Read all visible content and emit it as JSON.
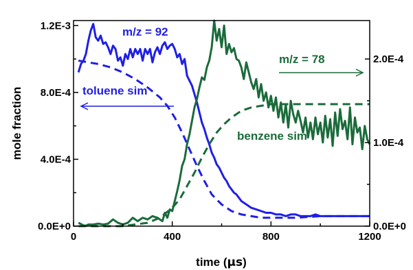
{
  "chart_data": {
    "type": "line",
    "xlabel_prefix": "time (",
    "xlabel_unit": "μs",
    "xlabel_suffix": ")",
    "ylabel": "mole fraction",
    "xlim": [
      0,
      1200
    ],
    "ylim_left": [
      0,
      0.00123
    ],
    "ylim_right": [
      0,
      0.000246
    ],
    "x_ticks": [
      0,
      400,
      800,
      1200
    ],
    "x_tick_labels": [
      "0",
      "400",
      "800",
      "1200"
    ],
    "left_ticks": [
      0,
      0.0004,
      0.0008,
      0.0012
    ],
    "left_tick_labels": [
      "0.0E+0",
      "4.0E-4",
      "8.0E-4",
      "1.2E-3"
    ],
    "right_ticks": [
      0,
      0.0001,
      0.0002
    ],
    "right_tick_labels": [
      "0.0E+0",
      "1.0E-4",
      "2.0E-4"
    ],
    "grid": false,
    "annotations": {
      "toluene_mz": "m/z = 92",
      "benzene_mz": "m/z = 78",
      "toluene_sim": "toluene sim",
      "benzene_sim": "benzene sim"
    },
    "colors": {
      "toluene": "#1f1fe6",
      "benzene": "#1b6b3a"
    },
    "series": [
      {
        "label_ref": "toluene_mz",
        "axis": "left",
        "style": "solid",
        "color": "#1f1fe6",
        "x": [
          20,
          30,
          40,
          50,
          60,
          70,
          80,
          90,
          100,
          110,
          120,
          130,
          140,
          150,
          160,
          170,
          180,
          190,
          200,
          210,
          220,
          230,
          240,
          250,
          260,
          270,
          280,
          290,
          300,
          310,
          320,
          330,
          340,
          350,
          360,
          370,
          380,
          390,
          400,
          410,
          420,
          430,
          440,
          450,
          460,
          470,
          480,
          490,
          500,
          510,
          520,
          530,
          540,
          550,
          560,
          570,
          580,
          590,
          600,
          610,
          620,
          630,
          640,
          650,
          660,
          670,
          680,
          690,
          700,
          720,
          740,
          760,
          780,
          800,
          820,
          840,
          860,
          880,
          900,
          920,
          940,
          960,
          980,
          1000,
          1020,
          1040,
          1060,
          1080,
          1100,
          1120,
          1140,
          1160,
          1180,
          1200
        ],
        "y": [
          0.00092,
          0.00097,
          0.00099,
          0.00103,
          0.00111,
          0.00117,
          0.00121,
          0.00113,
          0.00111,
          0.00114,
          0.00109,
          0.0011,
          0.00107,
          0.00103,
          0.00108,
          0.00106,
          0.00099,
          0.00101,
          0.00096,
          0.00103,
          0.001,
          0.00106,
          0.00101,
          0.00106,
          0.00103,
          0.00106,
          0.00099,
          0.00106,
          0.00103,
          0.00106,
          0.00098,
          0.00104,
          0.00107,
          0.00103,
          0.00108,
          0.0011,
          0.00106,
          0.00108,
          0.00109,
          0.00106,
          0.00101,
          0.00103,
          0.00097,
          0.001,
          0.0009,
          0.00087,
          0.00084,
          0.00079,
          0.00074,
          0.00068,
          0.00062,
          0.00058,
          0.00053,
          0.00049,
          0.00044,
          0.00041,
          0.00037,
          0.00035,
          0.00032,
          0.00029,
          0.00027,
          0.00024,
          0.00022,
          0.0002,
          0.00019,
          0.00017,
          0.00015,
          0.00014,
          0.00013,
          0.00011,
          0.0001,
          9e-05,
          8e-05,
          8e-05,
          7e-05,
          7e-05,
          6e-05,
          7e-05,
          7e-05,
          6e-05,
          6e-05,
          6e-05,
          7e-05,
          6e-05,
          6e-05,
          6e-05,
          6e-05,
          6e-05,
          6e-05,
          6e-05,
          6e-05,
          6e-05,
          6e-05,
          6e-05
        ]
      },
      {
        "label_ref": "toluene_sim",
        "axis": "left",
        "style": "dashed",
        "color": "#1f1fe6",
        "x": [
          20,
          60,
          100,
          150,
          200,
          250,
          300,
          350,
          380,
          410,
          440,
          470,
          500,
          530,
          560,
          600,
          640,
          680,
          720,
          760,
          800,
          850,
          900,
          1000,
          1100,
          1200
        ],
        "y": [
          0.00099,
          0.00098,
          0.00097,
          0.00095,
          0.00092,
          0.00088,
          0.00083,
          0.00077,
          0.00072,
          0.00065,
          0.00056,
          0.00046,
          0.00036,
          0.00027,
          0.00019,
          0.00013,
          9e-05,
          7e-05,
          6e-05,
          5e-05,
          5e-05,
          5e-05,
          5e-05,
          6e-05,
          6e-05,
          6e-05
        ]
      },
      {
        "label_ref": "benzene_mz",
        "axis": "right",
        "style": "solid",
        "color": "#1b6b3a",
        "x": [
          20,
          40,
          50,
          60,
          80,
          100,
          120,
          140,
          160,
          180,
          200,
          220,
          240,
          260,
          280,
          300,
          320,
          340,
          360,
          370,
          380,
          390,
          400,
          410,
          420,
          430,
          440,
          450,
          460,
          470,
          480,
          490,
          500,
          510,
          520,
          530,
          540,
          550,
          560,
          570,
          580,
          590,
          600,
          610,
          620,
          630,
          640,
          650,
          660,
          670,
          680,
          690,
          700,
          710,
          720,
          730,
          740,
          750,
          760,
          770,
          780,
          790,
          800,
          810,
          820,
          830,
          840,
          850,
          860,
          870,
          880,
          890,
          900,
          910,
          920,
          930,
          940,
          950,
          960,
          970,
          980,
          990,
          1000,
          1010,
          1020,
          1030,
          1040,
          1050,
          1060,
          1070,
          1080,
          1090,
          1100,
          1110,
          1120,
          1130,
          1140,
          1150,
          1160,
          1170,
          1180,
          1190,
          1200
        ],
        "y": [
          4e-06,
          1e-06,
          5e-07,
          2e-06,
          2e-06,
          3e-06,
          2e-06,
          3e-06,
          8e-06,
          4e-06,
          2e-06,
          4e-06,
          1e-05,
          6e-06,
          1e-05,
          8e-06,
          1.2e-05,
          1e-05,
          6e-06,
          1.6e-05,
          1e-05,
          2e-05,
          1.8e-05,
          3e-05,
          4.2e-05,
          5.5e-05,
          7.2e-05,
          8e-05,
          9.8e-05,
          0.00011,
          0.000126,
          0.000142,
          0.000152,
          0.000166,
          0.000178,
          0.000175,
          0.00019,
          0.000198,
          0.000214,
          0.000246,
          0.000222,
          0.000236,
          0.000214,
          0.00024,
          0.000206,
          0.000218,
          0.000208,
          0.000213,
          0.0002,
          0.000198,
          0.00019,
          0.000176,
          0.000196,
          0.000184,
          0.000172,
          0.000164,
          0.000176,
          0.000154,
          0.00017,
          0.00015,
          0.00016,
          0.000142,
          0.000156,
          0.000138,
          0.000154,
          0.00013,
          0.000148,
          0.000124,
          0.000146,
          0.000118,
          0.00015,
          0.000134,
          0.000124,
          0.000138,
          0.000126,
          0.000112,
          0.00013,
          0.000106,
          0.000124,
          0.000104,
          0.00013,
          0.00011,
          0.000124,
          0.0001,
          0.000132,
          0.000106,
          0.000128,
          9.6e-05,
          0.000136,
          0.000108,
          0.00014,
          0.000116,
          0.000126,
          0.000104,
          0.000142,
          9.8e-05,
          0.00013,
          0.000112,
          0.000118,
          9.2e-05,
          0.00012,
          0.000104,
          9.8e-05
        ]
      },
      {
        "label_ref": "benzene_sim",
        "axis": "left",
        "style": "dashed",
        "color": "#1b6b3a",
        "x": [
          20,
          200,
          300,
          350,
          400,
          430,
          460,
          490,
          520,
          550,
          580,
          610,
          640,
          680,
          720,
          760,
          800,
          850,
          900,
          1000,
          1100,
          1200
        ],
        "y": [
          0.0,
          0.0,
          2e-05,
          5e-05,
          0.00011,
          0.00016,
          0.00024,
          0.00032,
          0.00041,
          0.00049,
          0.00056,
          0.00061,
          0.00065,
          0.00069,
          0.00071,
          0.00072,
          0.00073,
          0.00073,
          0.00073,
          0.00073,
          0.00073,
          0.00073
        ]
      }
    ]
  }
}
